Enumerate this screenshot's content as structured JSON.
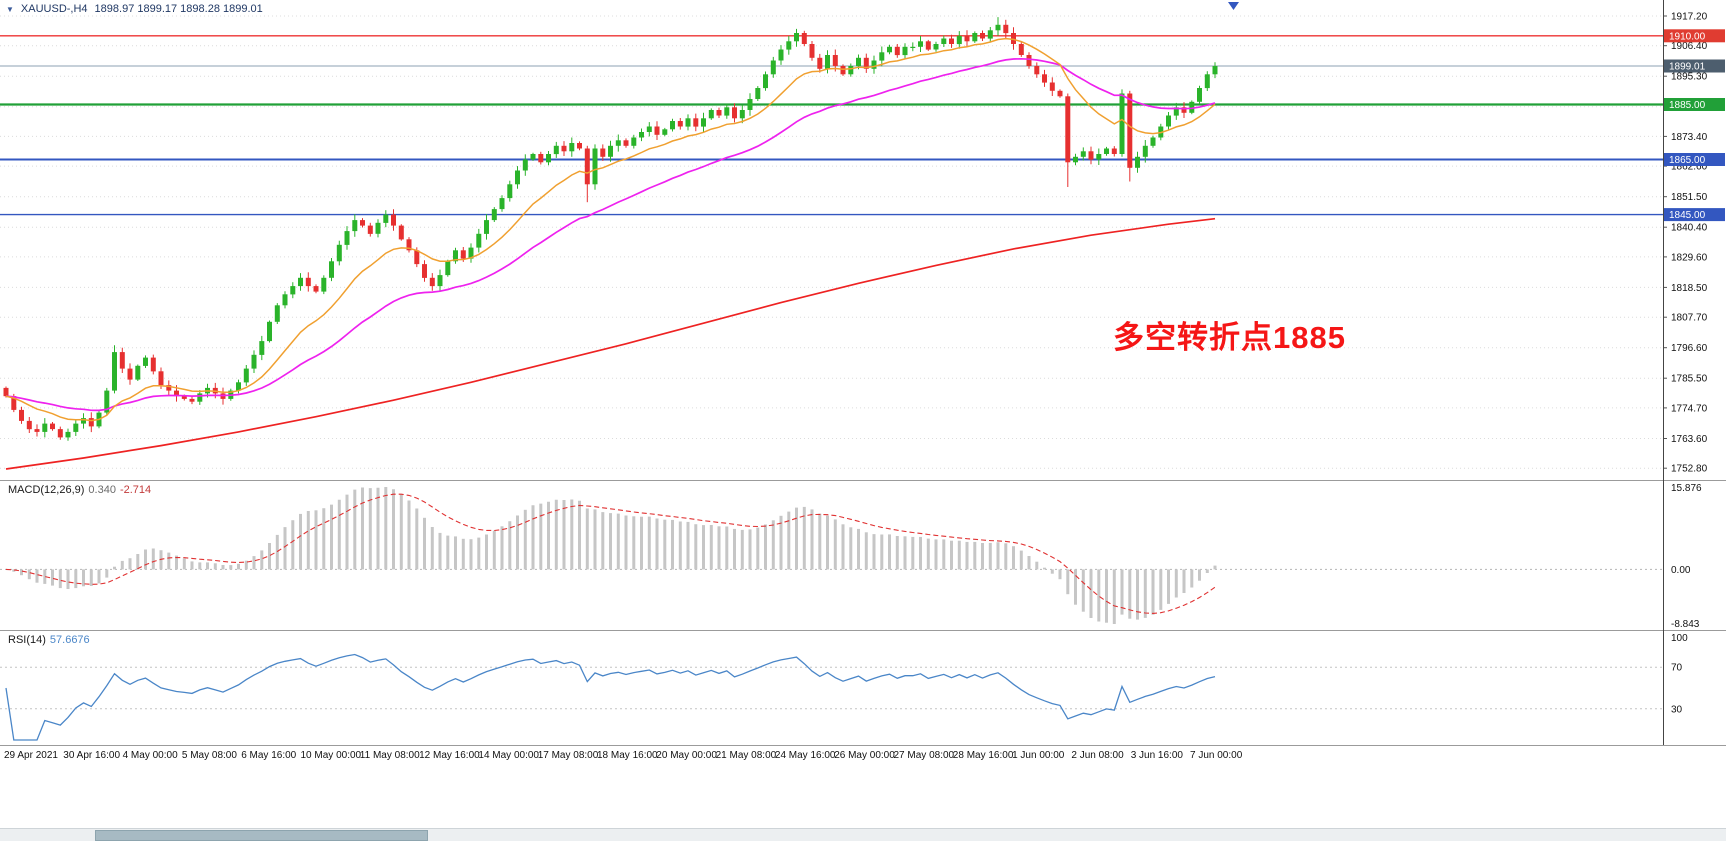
{
  "title_bar": {
    "dropdown_marker": "▼",
    "symbol": "XAUUSD-,H4",
    "ohlc": "1898.97 1899.17 1898.28 1899.01"
  },
  "annotation": {
    "text": "多空转折点1885",
    "color": "#f51616"
  },
  "macd_panel": {
    "name": "MACD(12,26,9)",
    "value_main": "0.340",
    "value_signal": "-2.714"
  },
  "rsi_panel": {
    "name": "RSI(14)",
    "value": "57.6676"
  },
  "chart_data": {
    "type": "candlestick",
    "symbol": "XAUUSD",
    "timeframe": "H4",
    "ohlc_readout": {
      "open": 1898.97,
      "high": 1899.17,
      "low": 1898.28,
      "close": 1899.01
    },
    "ylim": [
      1748.5,
      1923.0
    ],
    "price_axis_ticks": [
      1917.2,
      1906.4,
      1895.3,
      1884.2,
      1873.4,
      1862.6,
      1851.5,
      1840.4,
      1829.6,
      1818.5,
      1807.7,
      1796.6,
      1785.5,
      1774.7,
      1763.6,
      1752.8
    ],
    "time_labels": [
      "29 Apr 2021",
      "30 Apr 16:00",
      "4 May 00:00",
      "5 May 08:00",
      "6 May 16:00",
      "10 May 00:00",
      "11 May 08:00",
      "12 May 16:00",
      "14 May 00:00",
      "17 May 08:00",
      "18 May 16:00",
      "20 May 00:00",
      "21 May 08:00",
      "24 May 16:00",
      "26 May 00:00",
      "27 May 08:00",
      "28 May 16:00",
      "1 Jun 00:00",
      "2 Jun 08:00",
      "3 Jun 16:00",
      "7 Jun 00:00"
    ],
    "closes": [
      1779,
      1774,
      1770,
      1767,
      1766,
      1769,
      1767,
      1764,
      1766,
      1769,
      1771,
      1768,
      1773,
      1781,
      1795,
      1789,
      1785,
      1790,
      1793,
      1788,
      1783,
      1781,
      1779,
      1778,
      1777,
      1780,
      1782,
      1780,
      1778,
      1781,
      1784,
      1789,
      1794,
      1799,
      1806,
      1812,
      1816,
      1819,
      1822,
      1819,
      1817,
      1822,
      1828,
      1834,
      1839,
      1843,
      1841,
      1838,
      1842,
      1845,
      1841,
      1836,
      1832,
      1827,
      1822,
      1819,
      1823,
      1828,
      1832,
      1829,
      1833,
      1838,
      1843,
      1847,
      1851,
      1856,
      1861,
      1865,
      1867,
      1864,
      1867,
      1870,
      1868,
      1871,
      1869,
      1856,
      1869,
      1866,
      1870,
      1872,
      1870,
      1873,
      1875,
      1877,
      1874,
      1876,
      1879,
      1877,
      1880,
      1877,
      1880,
      1883,
      1881,
      1884,
      1880,
      1883,
      1887,
      1891,
      1896,
      1901,
      1905,
      1908,
      1911,
      1907,
      1902,
      1898,
      1903,
      1899,
      1896,
      1899,
      1902,
      1898,
      1901,
      1904,
      1906,
      1903,
      1906,
      1906,
      1908,
      1905,
      1907,
      1909,
      1907,
      1910,
      1908,
      1911,
      1909,
      1912,
      1914,
      1911,
      1907,
      1903,
      1899,
      1896,
      1893,
      1890,
      1888,
      1864,
      1866,
      1868,
      1865,
      1867,
      1869,
      1867,
      1889,
      1862,
      1866,
      1870,
      1873,
      1877,
      1881,
      1884,
      1882,
      1886,
      1891,
      1896,
      1899
    ],
    "candle_overrides": {
      "14": [
        1781,
        1797.5,
        1780,
        1795
      ],
      "75": [
        1869,
        1870,
        1849.5,
        1856
      ],
      "76": [
        1856,
        1870.5,
        1854,
        1869
      ],
      "102": [
        1908,
        1912.5,
        1906,
        1911
      ],
      "128": [
        1912,
        1916.8,
        1910,
        1914
      ],
      "137": [
        1888,
        1889,
        1855,
        1864
      ],
      "144": [
        1867,
        1890.5,
        1866,
        1889
      ],
      "145": [
        1889,
        1890,
        1857,
        1862
      ]
    },
    "ma_fast_period": 13,
    "ma_slow_period": 34,
    "ma_long_points": [
      [
        0,
        1752.5
      ],
      [
        10,
        1756.5
      ],
      [
        20,
        1761
      ],
      [
        30,
        1766
      ],
      [
        40,
        1771.5
      ],
      [
        50,
        1777.5
      ],
      [
        60,
        1784
      ],
      [
        70,
        1791
      ],
      [
        80,
        1798
      ],
      [
        90,
        1805.5
      ],
      [
        100,
        1813
      ],
      [
        110,
        1820
      ],
      [
        120,
        1826.5
      ],
      [
        130,
        1832.5
      ],
      [
        140,
        1837.5
      ],
      [
        150,
        1841.5
      ],
      [
        156,
        1843.5
      ]
    ],
    "hlines": [
      {
        "price": 1910.0,
        "label": "1910.00",
        "color": "#ee3333",
        "badge": "#e03c31",
        "width": 1.4
      },
      {
        "price": 1899.01,
        "label": "1899.01",
        "color": "#8ca0b3",
        "badge": "#4d5e6e",
        "width": 1
      },
      {
        "price": 1885.0,
        "label": "1885.00",
        "color": "#21a038",
        "badge": "#21a038",
        "width": 2.2
      },
      {
        "price": 1865.0,
        "label": "1865.00",
        "color": "#3357c0",
        "badge": "#3357c0",
        "width": 2
      },
      {
        "price": 1845.0,
        "label": "1845.00",
        "color": "#3357c0",
        "badge": "#3357c0",
        "width": 1.4
      }
    ],
    "macd": {
      "params": [
        12,
        26,
        9
      ],
      "axis_labels": [
        "15.876",
        "0.00",
        "-8.843"
      ]
    },
    "rsi": {
      "period": 14,
      "levels": [
        70,
        30
      ],
      "axis_labels": [
        "100",
        "70",
        "30"
      ]
    },
    "colors": {
      "up": "#2ab32a",
      "down": "#e63030",
      "ma_fast": "#f0a030",
      "ma_slow": "#ee22ee",
      "ma_long": "#ee2222",
      "macd_bar": "#c6c6c6",
      "macd_signal": "#e03131",
      "rsi": "#4a86c8",
      "grid": "#dcdcdc"
    }
  }
}
